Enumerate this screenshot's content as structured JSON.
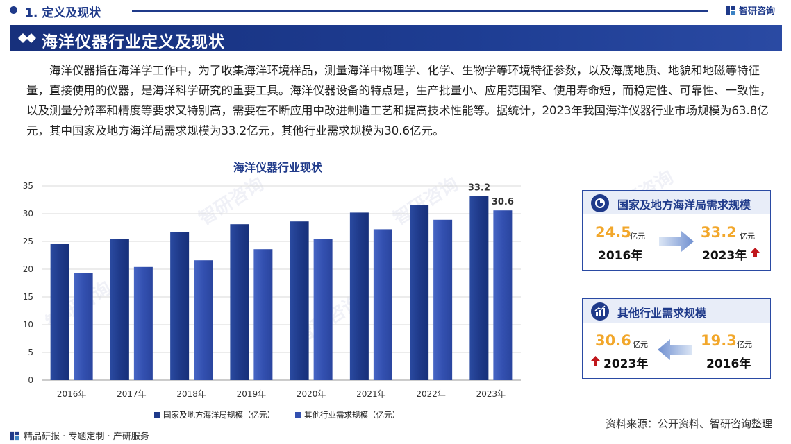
{
  "header": {
    "section_label": "1. 定义及现状",
    "brand_name": "智研咨询"
  },
  "banner": {
    "title": "海洋仪器行业定义及现状"
  },
  "intro_text": "海洋仪器指在海洋学工作中，为了收集海洋环境样品，测量海洋中物理学、化学、生物学等环境特征参数，以及海底地质、地貌和地磁等特征量，直接使用的仪器，是海洋科学研究的重要工具。海洋仪器设备的特点是，生产批量小、应用范围窄、使用寿命短，而稳定性、可靠性、一致性，以及测量分辨率和精度等要求又特别高，需要在不断应用中改进制造工艺和提高技术性能等。据统计，2023年我国海洋仪器行业市场规模为63.8亿元，其中国家及地方海洋局需求规模为33.2亿元，其他行业需求规模为30.6亿元。",
  "chart_data": {
    "type": "bar",
    "title": "海洋仪器行业现状",
    "categories": [
      "2016年",
      "2017年",
      "2018年",
      "2019年",
      "2020年",
      "2021年",
      "2022年",
      "2023年"
    ],
    "series": [
      {
        "name": "国家及地方海洋局规模（亿元）",
        "values": [
          24.5,
          25.5,
          26.7,
          28.1,
          28.6,
          30.2,
          31.6,
          33.2
        ],
        "color": "#1f3a8a"
      },
      {
        "name": "其他行业需求规模（亿元）",
        "values": [
          19.3,
          20.4,
          21.6,
          23.6,
          25.4,
          27.2,
          28.9,
          30.6
        ],
        "color": "#3350b0"
      }
    ],
    "data_labels": [
      {
        "series": 0,
        "index": 7,
        "text": "33.2"
      },
      {
        "series": 1,
        "index": 7,
        "text": "30.6"
      }
    ],
    "ylim": [
      0,
      35
    ],
    "yticks": [
      0,
      5,
      10,
      15,
      20,
      25,
      30,
      35
    ],
    "grid": true,
    "legend_position": "bottom"
  },
  "card1": {
    "title": "国家及地方海洋局需求规模",
    "from_value": "24.5",
    "from_unit": "亿元",
    "from_year": "2016年",
    "to_value": "33.2",
    "to_unit": "亿元",
    "to_year": "2023年"
  },
  "card2": {
    "title": "其他行业需求规模",
    "left_value": "30.6",
    "left_unit": "亿元",
    "left_year": "2023年",
    "right_value": "19.3",
    "right_unit": "亿元",
    "right_year": "2016年"
  },
  "footer": {
    "text": "精品研报 · 专题定制 · 产研服务",
    "source": "资料来源：公开资料、智研咨询整理"
  },
  "watermark": "智研咨询",
  "colors": {
    "primary": "#1f3a8a",
    "accent": "#f2a72b",
    "up_arrow": "#c0171c"
  }
}
